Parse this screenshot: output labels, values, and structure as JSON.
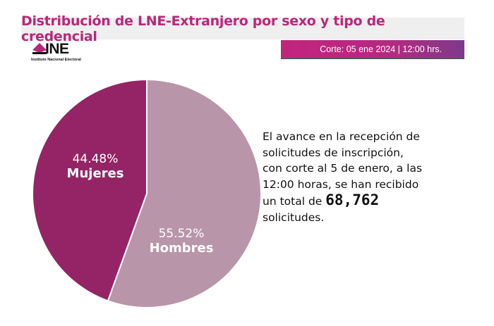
{
  "header": {
    "title": "Distribución de LNE-Extranjero por sexo y tipo de credencial",
    "corte": "Corte: 05 ene 2024 | 12:00 hrs."
  },
  "logo": {
    "name": "INE",
    "subtitle": "Instituto Nacional Electoral"
  },
  "chart_data": {
    "type": "pie",
    "categories": [
      "Mujeres",
      "Hombres"
    ],
    "values": [
      44.48,
      55.52
    ],
    "labels": [
      "44.48%",
      "55.52%"
    ],
    "colors": [
      "#952466",
      "#b995a9"
    ]
  },
  "summary": {
    "text": "El avance en la recepción de solicitudes de inscripción, con corte al 5 de enero, a las 12:00 horas, se han recibido un total de",
    "total": "68,762",
    "suffix": "solicitudes."
  }
}
